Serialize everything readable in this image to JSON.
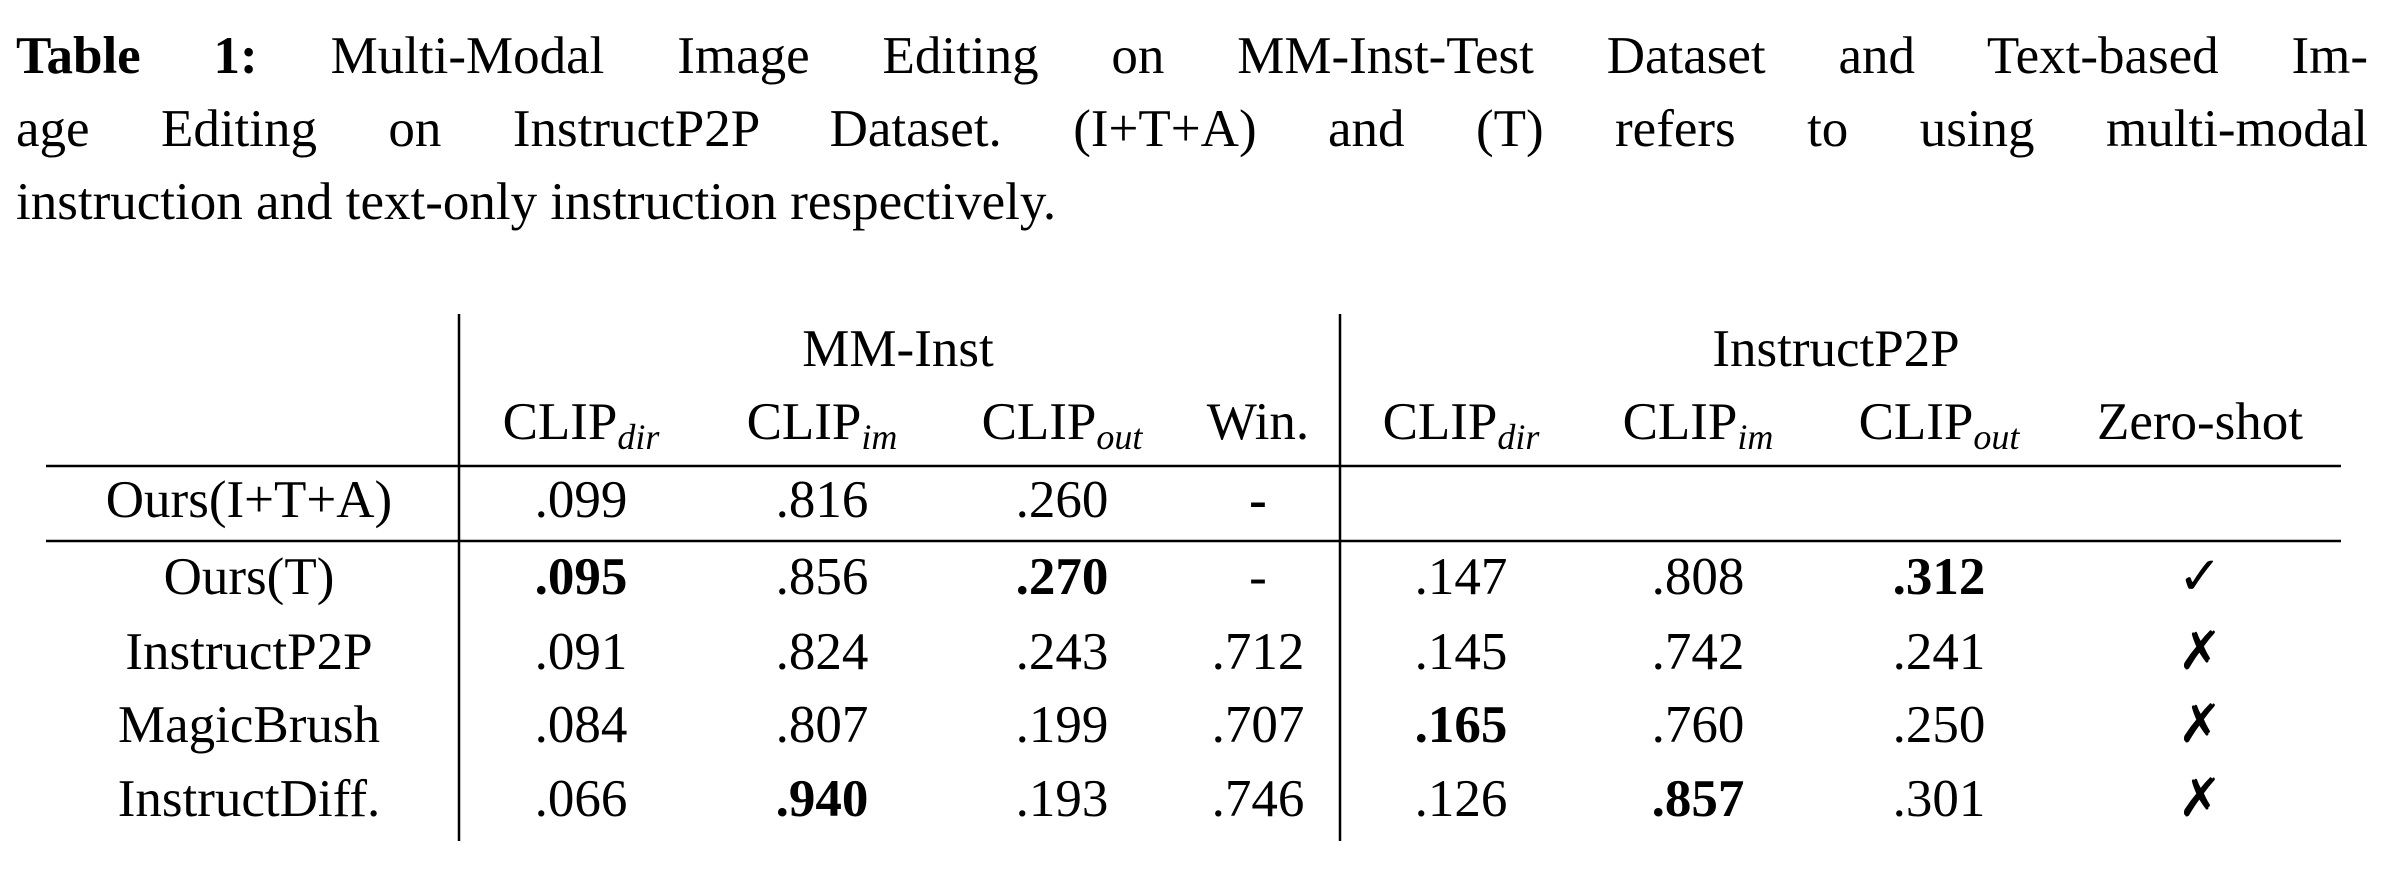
{
  "caption": {
    "label": "Table 1:",
    "lines": [
      "Multi-Modal Image Editing on MM-Inst-Test Dataset and Text-based Im-",
      "age Editing on InstructP2P Dataset. (I+T+A) and (T) refers to using multi-modal",
      "instruction and text-only instruction respectively."
    ]
  },
  "table": {
    "groups": [
      "MM-Inst",
      "InstructP2P"
    ],
    "columns": [
      {
        "text": "CLIP",
        "sub": "dir"
      },
      {
        "text": "CLIP",
        "sub": "im"
      },
      {
        "text": "CLIP",
        "sub": "out"
      },
      {
        "text": "Win."
      },
      {
        "text": "CLIP",
        "sub": "dir"
      },
      {
        "text": "CLIP",
        "sub": "im"
      },
      {
        "text": "CLIP",
        "sub": "out"
      },
      {
        "text": "Zero-shot"
      }
    ],
    "rows": [
      {
        "label": "Ours(I+T+A)",
        "cells": [
          {
            "text": ".099"
          },
          {
            "text": ".816"
          },
          {
            "text": ".260"
          },
          {
            "text": "-",
            "bold": true
          }
        ]
      },
      {
        "label": "Ours(T)",
        "cells": [
          {
            "text": ".095",
            "bold": true
          },
          {
            "text": ".856"
          },
          {
            "text": ".270",
            "bold": true
          },
          {
            "text": "-"
          },
          {
            "text": ".147"
          },
          {
            "text": ".808"
          },
          {
            "text": ".312",
            "bold": true
          },
          {
            "text": "✓"
          }
        ]
      },
      {
        "label": "InstructP2P",
        "cells": [
          {
            "text": ".091"
          },
          {
            "text": ".824"
          },
          {
            "text": ".243"
          },
          {
            "text": ".712"
          },
          {
            "text": ".145"
          },
          {
            "text": ".742"
          },
          {
            "text": ".241"
          },
          {
            "text": "✗"
          }
        ]
      },
      {
        "label": "MagicBrush",
        "cells": [
          {
            "text": ".084"
          },
          {
            "text": ".807"
          },
          {
            "text": ".199"
          },
          {
            "text": ".707"
          },
          {
            "text": ".165",
            "bold": true
          },
          {
            "text": ".760"
          },
          {
            "text": ".250"
          },
          {
            "text": "✗"
          }
        ]
      },
      {
        "label": "InstructDiff.",
        "cells": [
          {
            "text": ".066"
          },
          {
            "text": ".940",
            "bold": true
          },
          {
            "text": ".193"
          },
          {
            "text": ".746"
          },
          {
            "text": ".126"
          },
          {
            "text": ".857",
            "bold": true
          },
          {
            "text": ".301"
          },
          {
            "text": "✗"
          }
        ]
      }
    ]
  }
}
